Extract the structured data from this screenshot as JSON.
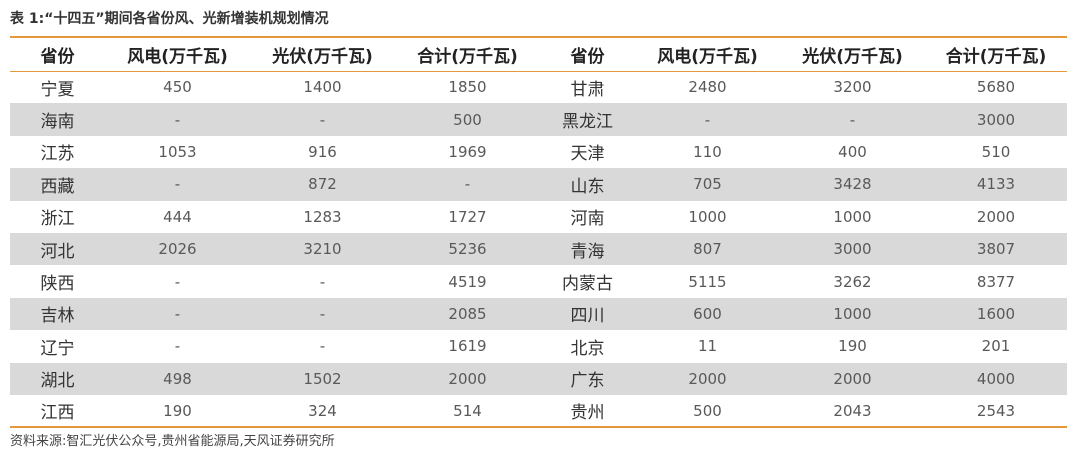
{
  "title": "表 1:“十四五”期间各省份风、光新增装机规划情况",
  "headers": [
    "省份",
    "风电(万千瓦)",
    "光伏(万千瓦)",
    "合计(万千瓦)",
    "省份",
    "风电(万千瓦)",
    "光伏(万千瓦)",
    "合计(万千瓦)"
  ],
  "rows": [
    [
      "宁夏",
      "450",
      "1400",
      "1850",
      "甘肃",
      "2480",
      "3200",
      "5680"
    ],
    [
      "海南",
      "-",
      "-",
      "500",
      "黑龙江",
      "-",
      "-",
      "3000"
    ],
    [
      "江苏",
      "1053",
      "916",
      "1969",
      "天津",
      "110",
      "400",
      "510"
    ],
    [
      "西藏",
      "-",
      "872",
      "-",
      "山东",
      "705",
      "3428",
      "4133"
    ],
    [
      "浙江",
      "444",
      "1283",
      "1727",
      "河南",
      "1000",
      "1000",
      "2000"
    ],
    [
      "河北",
      "2026",
      "3210",
      "5236",
      "青海",
      "807",
      "3000",
      "3807"
    ],
    [
      "陕西",
      "-",
      "-",
      "4519",
      "内蒙古",
      "5115",
      "3262",
      "8377"
    ],
    [
      "吉林",
      "-",
      "-",
      "2085",
      "四川",
      "600",
      "1000",
      "1600"
    ],
    [
      "辽宁",
      "-",
      "-",
      "1619",
      "北京",
      "11",
      "190",
      "201"
    ],
    [
      "湖北",
      "498",
      "1502",
      "2000",
      "广东",
      "2000",
      "2000",
      "4000"
    ],
    [
      "江西",
      "190",
      "324",
      "514",
      "贵州",
      "500",
      "2043",
      "2543"
    ]
  ],
  "source": "资料来源:智汇光伏公众号,贵州省能源局,天风证券研究所",
  "colors": {
    "accent_rule": "#e49a3a",
    "stripe": "#d9d9d9"
  }
}
